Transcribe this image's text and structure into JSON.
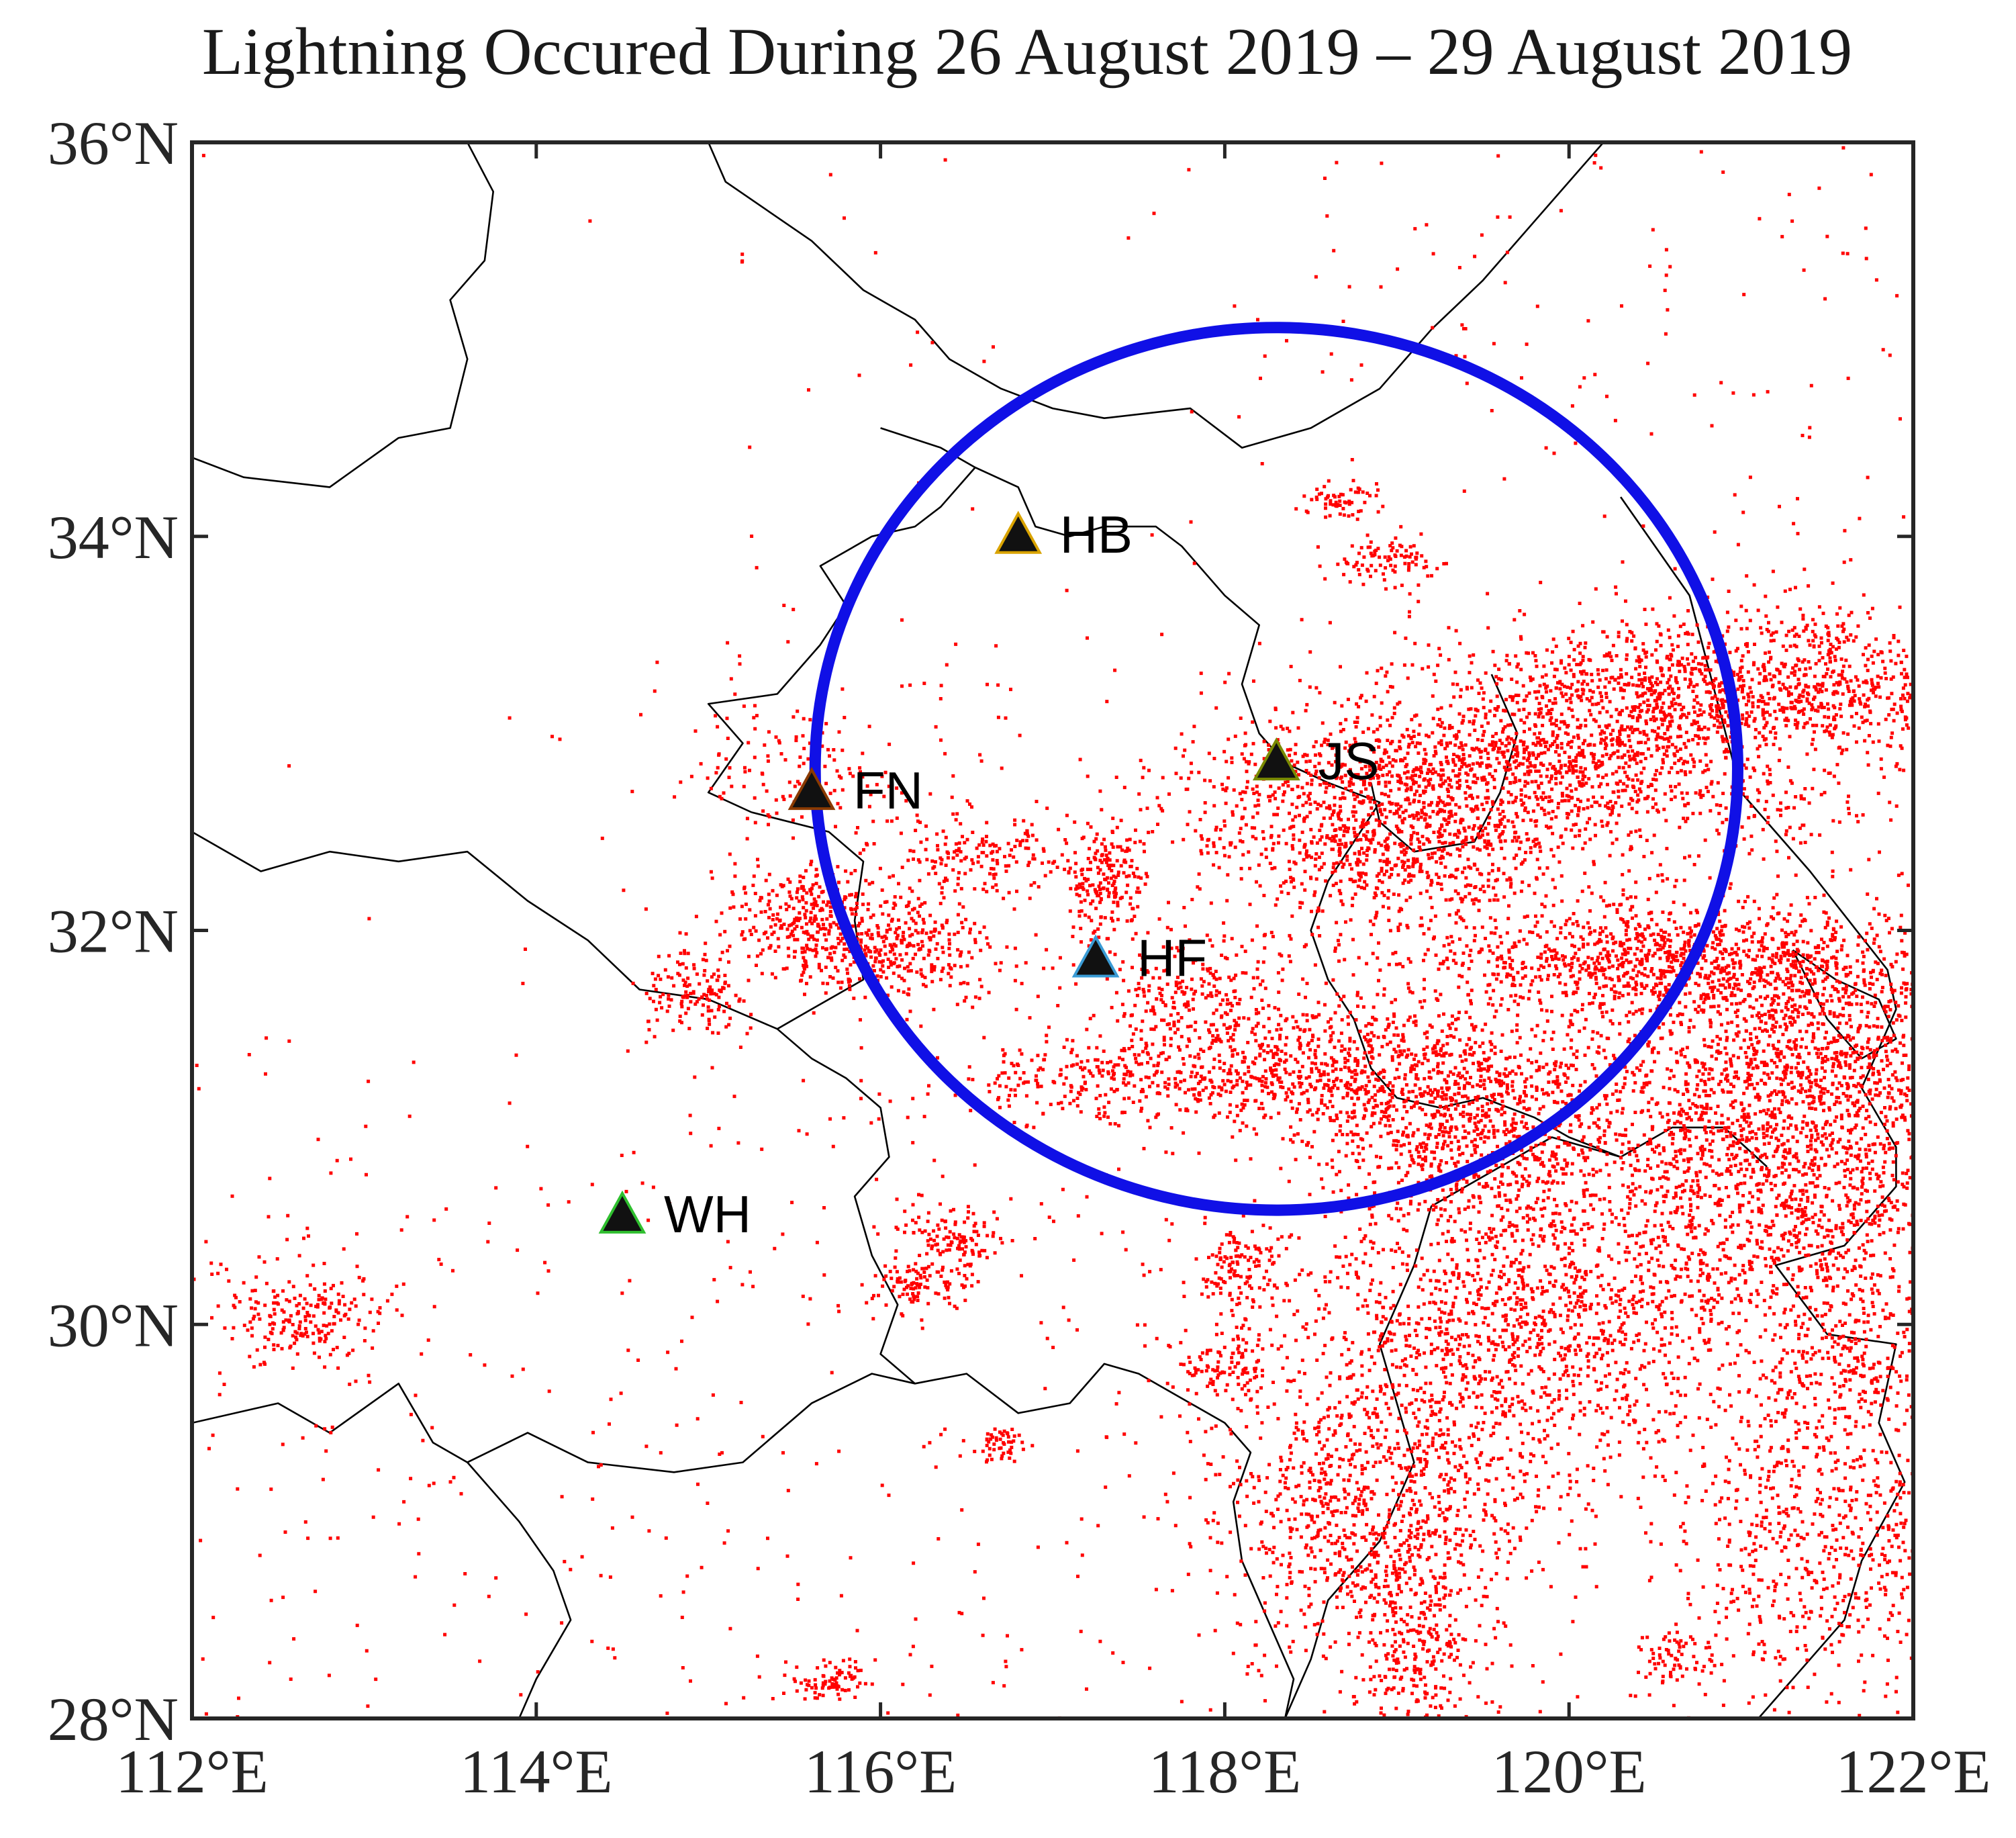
{
  "title": "Lightning Occured During 26 August 2019 – 29 August 2019",
  "chart_data": {
    "type": "scatter",
    "title": "Lightning Occured During 26 August 2019 – 29 August 2019",
    "xlim": [
      112,
      122
    ],
    "ylim": [
      28,
      36
    ],
    "x_ticks": [
      {
        "value": 112,
        "label": "112°E"
      },
      {
        "value": 114,
        "label": "114°E"
      },
      {
        "value": 116,
        "label": "116°E"
      },
      {
        "value": 118,
        "label": "118°E"
      },
      {
        "value": 120,
        "label": "120°E"
      },
      {
        "value": 122,
        "label": "122°E"
      }
    ],
    "y_ticks": [
      {
        "value": 28,
        "label": "28°N"
      },
      {
        "value": 30,
        "label": "30°N"
      },
      {
        "value": 32,
        "label": "32°N"
      },
      {
        "value": 34,
        "label": "34°N"
      },
      {
        "value": 36,
        "label": "36°N"
      }
    ],
    "stations": [
      {
        "code": "HB",
        "lon": 116.8,
        "lat": 34.0,
        "outline": "#d9a300"
      },
      {
        "code": "FN",
        "lon": 115.6,
        "lat": 32.7,
        "outline": "#8a3a00"
      },
      {
        "code": "JS",
        "lon": 118.3,
        "lat": 32.85,
        "outline": "#7a8a00"
      },
      {
        "code": "HF",
        "lon": 117.25,
        "lat": 31.85,
        "outline": "#3a9bd5"
      },
      {
        "code": "WH",
        "lon": 114.5,
        "lat": 30.55,
        "outline": "#2fbf2f"
      }
    ],
    "range_circle": {
      "center_lon": 118.3,
      "center_lat": 32.82,
      "radius_deg_lon": 2.68,
      "radius_deg_lat": 2.24,
      "color": "#1010e6"
    },
    "lightning_color": "#ff0000",
    "lightning_clusters": [
      {
        "lon": 121.0,
        "lat": 33.25,
        "slon": 0.9,
        "slat": 0.18,
        "n": 1400
      },
      {
        "lon": 119.6,
        "lat": 32.8,
        "slon": 0.9,
        "slat": 0.2,
        "n": 1500
      },
      {
        "lon": 119.0,
        "lat": 32.4,
        "slon": 0.6,
        "slat": 0.18,
        "n": 700
      },
      {
        "lon": 120.5,
        "lat": 31.85,
        "slon": 0.8,
        "slat": 0.15,
        "n": 1000
      },
      {
        "lon": 121.4,
        "lat": 31.4,
        "slon": 0.6,
        "slat": 0.35,
        "n": 1200
      },
      {
        "lon": 121.2,
        "lat": 30.7,
        "slon": 0.7,
        "slat": 0.4,
        "n": 1400
      },
      {
        "lon": 119.7,
        "lat": 30.0,
        "slon": 0.65,
        "slat": 0.45,
        "n": 1400
      },
      {
        "lon": 118.7,
        "lat": 31.3,
        "slon": 0.6,
        "slat": 0.18,
        "n": 800
      },
      {
        "lon": 119.5,
        "lat": 31.0,
        "slon": 0.5,
        "slat": 0.25,
        "n": 700
      },
      {
        "lon": 118.8,
        "lat": 29.1,
        "slon": 0.45,
        "slat": 0.35,
        "n": 800
      },
      {
        "lon": 119.1,
        "lat": 28.4,
        "slon": 0.25,
        "slat": 0.3,
        "n": 350
      },
      {
        "lon": 121.6,
        "lat": 29.8,
        "slon": 0.25,
        "slat": 0.3,
        "n": 300
      },
      {
        "lon": 121.8,
        "lat": 28.8,
        "slon": 0.3,
        "slat": 0.35,
        "n": 300
      },
      {
        "lon": 115.6,
        "lat": 32.05,
        "slon": 0.25,
        "slat": 0.13,
        "n": 320
      },
      {
        "lon": 116.1,
        "lat": 31.9,
        "slon": 0.3,
        "slat": 0.12,
        "n": 300
      },
      {
        "lon": 117.3,
        "lat": 32.25,
        "slon": 0.12,
        "slat": 0.15,
        "n": 180
      },
      {
        "lon": 116.6,
        "lat": 32.4,
        "slon": 0.35,
        "slat": 0.12,
        "n": 200
      },
      {
        "lon": 117.8,
        "lat": 31.7,
        "slon": 0.3,
        "slat": 0.18,
        "n": 250
      },
      {
        "lon": 117.3,
        "lat": 31.25,
        "slon": 0.45,
        "slat": 0.1,
        "n": 250
      },
      {
        "lon": 114.9,
        "lat": 31.7,
        "slon": 0.15,
        "slat": 0.12,
        "n": 140
      },
      {
        "lon": 112.6,
        "lat": 30.05,
        "slon": 0.25,
        "slat": 0.12,
        "n": 220
      },
      {
        "lon": 116.4,
        "lat": 30.45,
        "slon": 0.15,
        "slat": 0.08,
        "n": 120
      },
      {
        "lon": 116.2,
        "lat": 30.2,
        "slon": 0.15,
        "slat": 0.07,
        "n": 100
      },
      {
        "lon": 118.1,
        "lat": 30.3,
        "slon": 0.15,
        "slat": 0.12,
        "n": 140
      },
      {
        "lon": 118.0,
        "lat": 29.8,
        "slon": 0.15,
        "slat": 0.1,
        "n": 110
      },
      {
        "lon": 115.7,
        "lat": 28.2,
        "slon": 0.12,
        "slat": 0.05,
        "n": 80
      },
      {
        "lon": 116.7,
        "lat": 29.4,
        "slon": 0.08,
        "slat": 0.05,
        "n": 50
      },
      {
        "lon": 118.95,
        "lat": 33.9,
        "slon": 0.15,
        "slat": 0.06,
        "n": 90
      },
      {
        "lon": 118.65,
        "lat": 34.2,
        "slon": 0.1,
        "slat": 0.05,
        "n": 60
      },
      {
        "lon": 120.6,
        "lat": 28.3,
        "slon": 0.12,
        "slat": 0.08,
        "n": 70
      },
      {
        "lon": 121.2,
        "lat": 28.9,
        "slon": 0.25,
        "slat": 0.4,
        "n": 300
      },
      {
        "lon": 115.5,
        "lat": 32.8,
        "slon": 0.3,
        "slat": 0.15,
        "n": 120
      }
    ],
    "background_strikes": {
      "n": 1500,
      "lon_range": [
        112,
        122
      ],
      "lat_range": [
        28,
        36
      ]
    },
    "boundaries": [
      [
        [
          112.0,
          34.4
        ],
        [
          112.3,
          34.3
        ],
        [
          112.8,
          34.25
        ],
        [
          113.2,
          34.5
        ],
        [
          113.5,
          34.55
        ],
        [
          113.6,
          34.9
        ],
        [
          113.5,
          35.2
        ],
        [
          113.7,
          35.4
        ],
        [
          113.75,
          35.75
        ],
        [
          113.6,
          36.0
        ]
      ],
      [
        [
          115.0,
          36.0
        ],
        [
          115.1,
          35.8
        ],
        [
          115.6,
          35.5
        ],
        [
          115.9,
          35.25
        ],
        [
          116.2,
          35.1
        ],
        [
          116.4,
          34.9
        ],
        [
          116.7,
          34.75
        ],
        [
          117.0,
          34.65
        ],
        [
          117.3,
          34.6
        ],
        [
          117.8,
          34.65
        ],
        [
          118.1,
          34.45
        ],
        [
          118.5,
          34.55
        ],
        [
          118.9,
          34.75
        ],
        [
          119.2,
          35.05
        ],
        [
          119.5,
          35.3
        ],
        [
          119.8,
          35.6
        ],
        [
          120.1,
          35.9
        ],
        [
          120.2,
          36.0
        ]
      ],
      [
        [
          116.0,
          34.55
        ],
        [
          116.35,
          34.45
        ],
        [
          116.55,
          34.35
        ],
        [
          116.8,
          34.25
        ],
        [
          116.9,
          34.05
        ],
        [
          117.1,
          34.0
        ],
        [
          117.3,
          34.05
        ],
        [
          117.6,
          34.05
        ],
        [
          117.75,
          33.95
        ],
        [
          118.0,
          33.7
        ],
        [
          118.2,
          33.55
        ],
        [
          118.1,
          33.25
        ],
        [
          118.2,
          33.0
        ],
        [
          118.35,
          32.85
        ],
        [
          118.6,
          32.75
        ],
        [
          118.9,
          32.65
        ],
        [
          118.75,
          32.45
        ],
        [
          118.6,
          32.25
        ],
        [
          118.5,
          32.0
        ],
        [
          118.6,
          31.75
        ],
        [
          118.75,
          31.55
        ],
        [
          118.85,
          31.3
        ],
        [
          119.0,
          31.15
        ],
        [
          119.25,
          31.1
        ],
        [
          119.5,
          31.15
        ],
        [
          119.8,
          31.05
        ],
        [
          120.0,
          30.95
        ],
        [
          120.3,
          30.85
        ]
      ],
      [
        [
          115.25,
          32.6
        ],
        [
          115.0,
          32.7
        ],
        [
          115.2,
          32.95
        ],
        [
          115.0,
          33.15
        ],
        [
          115.4,
          33.2
        ],
        [
          115.65,
          33.45
        ],
        [
          115.8,
          33.65
        ],
        [
          115.65,
          33.85
        ],
        [
          115.95,
          34.0
        ],
        [
          116.2,
          34.05
        ],
        [
          116.35,
          34.15
        ],
        [
          116.55,
          34.35
        ]
      ],
      [
        [
          115.25,
          32.6
        ],
        [
          115.7,
          32.5
        ],
        [
          115.9,
          32.35
        ],
        [
          115.85,
          32.05
        ],
        [
          115.9,
          31.75
        ],
        [
          115.6,
          31.6
        ],
        [
          115.4,
          31.5
        ],
        [
          115.6,
          31.35
        ],
        [
          115.8,
          31.25
        ],
        [
          116.0,
          31.1
        ],
        [
          116.05,
          30.85
        ],
        [
          115.85,
          30.65
        ],
        [
          115.95,
          30.35
        ],
        [
          116.1,
          30.1
        ],
        [
          116.0,
          29.85
        ],
        [
          116.2,
          29.7
        ],
        [
          116.5,
          29.75
        ],
        [
          116.8,
          29.55
        ],
        [
          117.1,
          29.6
        ],
        [
          117.3,
          29.8
        ],
        [
          117.5,
          29.75
        ],
        [
          117.8,
          29.6
        ],
        [
          118.0,
          29.5
        ],
        [
          118.15,
          29.35
        ],
        [
          118.05,
          29.1
        ],
        [
          118.1,
          28.8
        ],
        [
          118.25,
          28.5
        ],
        [
          118.4,
          28.2
        ],
        [
          118.35,
          28.0
        ]
      ],
      [
        [
          112.0,
          32.5
        ],
        [
          112.4,
          32.3
        ],
        [
          112.8,
          32.4
        ],
        [
          113.2,
          32.35
        ],
        [
          113.6,
          32.4
        ],
        [
          113.95,
          32.15
        ],
        [
          114.3,
          31.95
        ],
        [
          114.6,
          31.7
        ],
        [
          115.0,
          31.65
        ],
        [
          115.4,
          31.5
        ]
      ],
      [
        [
          112.0,
          29.5
        ],
        [
          112.5,
          29.6
        ],
        [
          112.8,
          29.45
        ],
        [
          113.2,
          29.7
        ],
        [
          113.4,
          29.4
        ],
        [
          113.6,
          29.3
        ],
        [
          113.95,
          29.45
        ],
        [
          114.3,
          29.3
        ],
        [
          114.8,
          29.25
        ],
        [
          115.2,
          29.3
        ],
        [
          115.6,
          29.6
        ],
        [
          115.95,
          29.75
        ],
        [
          116.2,
          29.7
        ]
      ],
      [
        [
          113.6,
          29.3
        ],
        [
          113.9,
          29.0
        ],
        [
          114.1,
          28.75
        ],
        [
          114.2,
          28.5
        ],
        [
          114.0,
          28.2
        ],
        [
          113.9,
          28.0
        ]
      ],
      [
        [
          118.35,
          28.0
        ],
        [
          118.5,
          28.3
        ],
        [
          118.6,
          28.6
        ],
        [
          118.9,
          28.9
        ],
        [
          119.1,
          29.3
        ],
        [
          119.0,
          29.6
        ],
        [
          118.9,
          29.9
        ],
        [
          119.1,
          30.3
        ],
        [
          119.2,
          30.6
        ],
        [
          119.6,
          30.8
        ],
        [
          119.9,
          30.95
        ],
        [
          120.3,
          30.85
        ],
        [
          120.6,
          31.0
        ],
        [
          120.9,
          31.0
        ],
        [
          121.15,
          30.8
        ]
      ],
      [
        [
          119.55,
          33.3
        ],
        [
          119.7,
          33.0
        ],
        [
          119.6,
          32.7
        ],
        [
          119.45,
          32.45
        ],
        [
          119.1,
          32.4
        ],
        [
          118.9,
          32.55
        ],
        [
          118.85,
          32.75
        ]
      ],
      [
        [
          120.3,
          34.2
        ],
        [
          120.7,
          33.7
        ],
        [
          120.85,
          33.2
        ],
        [
          121.0,
          32.7
        ],
        [
          121.4,
          32.3
        ],
        [
          121.85,
          31.8
        ],
        [
          121.9,
          31.6
        ],
        [
          121.7,
          31.2
        ],
        [
          121.9,
          30.9
        ],
        [
          121.9,
          30.7
        ],
        [
          121.6,
          30.4
        ],
        [
          121.2,
          30.3
        ],
        [
          121.5,
          29.95
        ],
        [
          121.9,
          29.9
        ],
        [
          121.8,
          29.5
        ],
        [
          121.95,
          29.2
        ],
        [
          121.7,
          28.8
        ],
        [
          121.6,
          28.5
        ],
        [
          121.3,
          28.2
        ],
        [
          121.1,
          28.0
        ]
      ],
      [
        [
          121.3,
          31.9
        ],
        [
          121.55,
          31.75
        ],
        [
          121.8,
          31.65
        ],
        [
          121.9,
          31.45
        ],
        [
          121.7,
          31.35
        ],
        [
          121.5,
          31.55
        ],
        [
          121.3,
          31.9
        ]
      ]
    ]
  }
}
